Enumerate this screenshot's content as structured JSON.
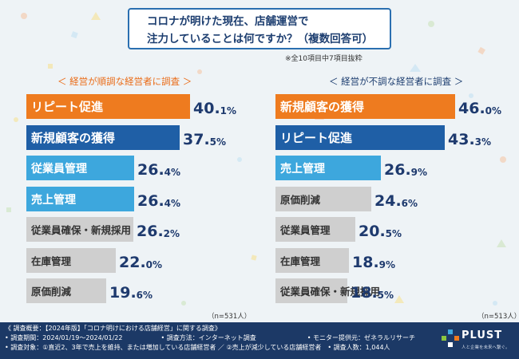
{
  "title_lines": [
    "コロナが明けた現在、店舗運営で",
    "注力していることは何ですか？（複数回答可）"
  ],
  "note": "※全10項目中7項目抜粋",
  "chart_data": [
    {
      "type": "bar",
      "title": "＜ 経営が順調な経営者に調査 ＞",
      "categories": [
        "リピート促進",
        "新規顧客の獲得",
        "従業員管理",
        "売上管理",
        "従業員確保・新規採用",
        "在庫管理",
        "原価削減"
      ],
      "values": [
        40.1,
        37.5,
        26.4,
        26.4,
        26.2,
        22.0,
        19.6
      ],
      "value_labels": [
        [
          "40.",
          "1%"
        ],
        [
          "37.",
          "5%"
        ],
        [
          "26.",
          "4%"
        ],
        [
          "26.",
          "4%"
        ],
        [
          "26.",
          "2%"
        ],
        [
          "22.",
          "0%"
        ],
        [
          "19.",
          "6%"
        ]
      ],
      "xlim": [
        0,
        40.1
      ],
      "n_label": "（n=531人）"
    },
    {
      "type": "bar",
      "title": "＜ 経営が不調な経営者に調査 ＞",
      "categories": [
        "新規顧客の獲得",
        "リピート促進",
        "売上管理",
        "原価削減",
        "従業員管理",
        "在庫管理",
        "従業員確保・新規採用"
      ],
      "values": [
        46.0,
        43.3,
        26.9,
        24.6,
        20.5,
        18.9,
        18.5
      ],
      "value_labels": [
        [
          "46.",
          "0%"
        ],
        [
          "43.",
          "3%"
        ],
        [
          "26.",
          "9%"
        ],
        [
          "24.",
          "6%"
        ],
        [
          "20.",
          "5%"
        ],
        [
          "18.",
          "9%"
        ],
        [
          "18.",
          "5%"
        ]
      ],
      "xlim": [
        0,
        46.0
      ],
      "n_label": "（n=513人）"
    }
  ],
  "colors": {
    "orange": "#ee7b1f",
    "dark_blue": "#1f5fa6",
    "light_blue": "#3da7dd",
    "gray": "#cfcfcf",
    "footer": "#1c3966"
  },
  "footer_lines": [
    "《 調査概要：【2024年版】「コロナ明けにおける店舗経営」に関する調査》",
    "• 調査期間：2024/01/19～2024/01/22　　　　　　• 調査方法：インターネット調査　　　　　　　　• モニター提供元：ゼネラルリサーチ",
    "• 調査対象：①直近2、3年で売上を維持、または増加している店舗経営者 ／ ②売上が減少している店舗経営者　• 調査人数：1,044人"
  ],
  "logo": {
    "name": "PLUST",
    "tagline": "人と企業を未来へ繋ぐ。"
  }
}
